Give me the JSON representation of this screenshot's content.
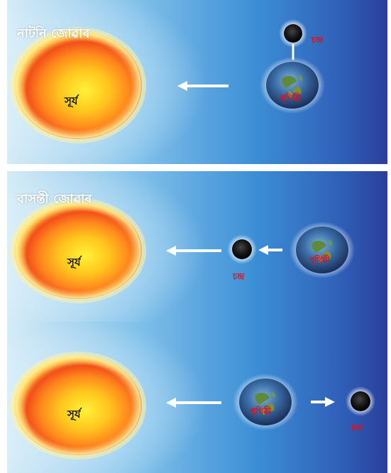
{
  "panels": [
    {
      "title": "নাটনি জোৱাৰ",
      "sun": "সূৰ্য",
      "earth": "পৃথিৱী",
      "moon": "চন্দ্ৰ"
    },
    {
      "title": "বাসন্তী জোৱাৰ",
      "sun": "সূৰ্য",
      "earth": "পৃথিৱী",
      "moon": "চন্দ্ৰ"
    },
    {
      "title": "",
      "sun": "সূৰ্য",
      "earth": "পৃথিৱী",
      "moon": "চন্দ্ৰ"
    }
  ],
  "colors": {
    "background_left": "#cfe6f4",
    "background_mid": "#3d84cf",
    "background_right": "#2a3f9a",
    "sun_outer": "#f04a14",
    "sun_inner": "#ffe020",
    "label_red": "#e0101a",
    "arrow": "#ffffff"
  }
}
